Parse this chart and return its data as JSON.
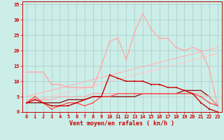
{
  "xlabel": "Vent moyen/en rafales ( kn/h )",
  "bg_color": "#cceee8",
  "grid_color": "#aacccc",
  "x_ticks": [
    0,
    1,
    2,
    3,
    4,
    5,
    6,
    7,
    8,
    9,
    10,
    11,
    12,
    13,
    14,
    15,
    16,
    17,
    18,
    19,
    20,
    21,
    22,
    23
  ],
  "y_ticks": [
    0,
    5,
    10,
    15,
    20,
    25,
    30,
    35
  ],
  "xlim": [
    -0.5,
    23.5
  ],
  "ylim": [
    0,
    36
  ],
  "series": [
    {
      "x": [
        0,
        1,
        2,
        3,
        4,
        5,
        6,
        7,
        8,
        9,
        10,
        11,
        12,
        13,
        14,
        15,
        16,
        17,
        18,
        19,
        20,
        21,
        22,
        23
      ],
      "y": [
        13,
        13,
        13,
        9,
        9,
        8,
        8,
        8,
        8,
        15,
        23,
        24,
        17,
        26,
        32,
        27,
        24,
        24,
        21,
        20,
        21,
        20,
        14,
        2
      ],
      "color": "#ffaaaa",
      "lw": 1.0,
      "ms": 2.0,
      "marker": true,
      "zorder": 2
    },
    {
      "x": [
        0,
        23
      ],
      "y": [
        5,
        21
      ],
      "color": "#ffbbbb",
      "lw": 1.0,
      "ms": 0,
      "marker": false,
      "zorder": 1
    },
    {
      "x": [
        0,
        23
      ],
      "y": [
        3,
        19
      ],
      "color": "#ffcccc",
      "lw": 1.0,
      "ms": 0,
      "marker": false,
      "zorder": 1
    },
    {
      "x": [
        0,
        1,
        2,
        3,
        4,
        5,
        6,
        7,
        8,
        9,
        10,
        11,
        12,
        13,
        14,
        15,
        16,
        17,
        18,
        19,
        20,
        21,
        22,
        23
      ],
      "y": [
        3,
        4,
        3,
        2,
        2,
        2,
        3,
        4,
        5,
        5,
        12,
        11,
        10,
        10,
        10,
        9,
        9,
        8,
        8,
        7,
        6,
        3,
        1,
        0
      ],
      "color": "#cc0000",
      "lw": 1.0,
      "ms": 2.0,
      "marker": true,
      "zorder": 4
    },
    {
      "x": [
        0,
        1,
        2,
        3,
        4,
        5,
        6,
        7,
        8,
        9,
        10,
        11,
        12,
        13,
        14,
        15,
        16,
        17,
        18,
        19,
        20,
        21,
        22,
        23
      ],
      "y": [
        3,
        5,
        3,
        1,
        2,
        3,
        3,
        2,
        3,
        5,
        5,
        6,
        6,
        6,
        6,
        6,
        6,
        6,
        6,
        6,
        6,
        5,
        3,
        2
      ],
      "color": "#ff5555",
      "lw": 1.0,
      "ms": 2.0,
      "marker": true,
      "zorder": 3
    },
    {
      "x": [
        0,
        1,
        2,
        3,
        4,
        5,
        6,
        7,
        8,
        9,
        10,
        11,
        12,
        13,
        14,
        15,
        16,
        17,
        18,
        19,
        20,
        21,
        22,
        23
      ],
      "y": [
        3,
        3,
        3,
        3,
        3,
        4,
        4,
        4,
        5,
        5,
        5,
        5,
        5,
        5,
        6,
        6,
        6,
        6,
        6,
        7,
        7,
        7,
        5,
        2
      ],
      "color": "#880000",
      "lw": 0.9,
      "ms": 0,
      "marker": false,
      "zorder": 2
    },
    {
      "x": [
        0,
        1,
        2,
        3,
        4,
        5,
        6,
        7,
        8,
        9,
        10,
        11,
        12,
        13,
        14,
        15,
        16,
        17,
        18,
        19,
        20,
        21,
        22,
        23
      ],
      "y": [
        4,
        4,
        4,
        4,
        5,
        5,
        5,
        5,
        6,
        6,
        6,
        6,
        6,
        6,
        6,
        6,
        6,
        6,
        6,
        6,
        6,
        6,
        5,
        2
      ],
      "color": "#ffaaaa",
      "lw": 0.9,
      "ms": 0,
      "marker": false,
      "zorder": 2
    }
  ]
}
